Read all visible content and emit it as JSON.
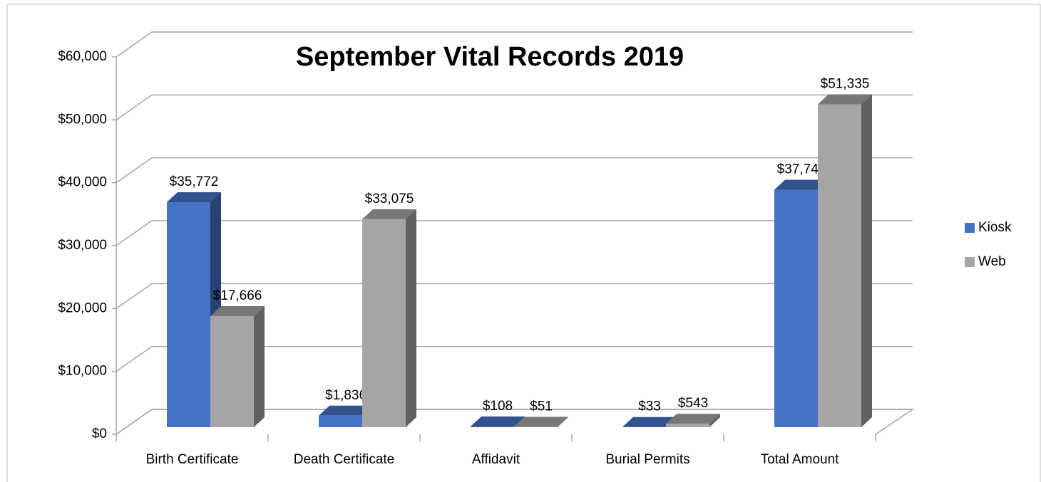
{
  "chart_data": {
    "type": "bar3d",
    "title": "September Vital Records 2019",
    "categories": [
      "Birth Certificate",
      "Death Certificate",
      "Affidavit",
      "Burial Permits",
      "Total Amount"
    ],
    "series": [
      {
        "name": "Kiosk",
        "color": "#4472c4",
        "values": [
          35772,
          1836,
          108,
          33,
          37749
        ],
        "value_labels": [
          "$35,772",
          "$1,836",
          "$108",
          "$33",
          "$37,749"
        ]
      },
      {
        "name": "Web",
        "color": "#a5a5a5",
        "values": [
          17666,
          33075,
          51,
          543,
          51335
        ],
        "value_labels": [
          "$17,666",
          "$33,075",
          "$51",
          "$543",
          "$51,335"
        ]
      }
    ],
    "ylim": [
      0,
      60000
    ],
    "yticks": [
      {
        "value": 0,
        "label": "$0"
      },
      {
        "value": 10000,
        "label": "$10,000"
      },
      {
        "value": 20000,
        "label": "$20,000"
      },
      {
        "value": 30000,
        "label": "$30,000"
      },
      {
        "value": 40000,
        "label": "$40,000"
      },
      {
        "value": 50000,
        "label": "$50,000"
      },
      {
        "value": 60000,
        "label": "$60,000"
      }
    ],
    "grid": true,
    "legend": "right"
  }
}
